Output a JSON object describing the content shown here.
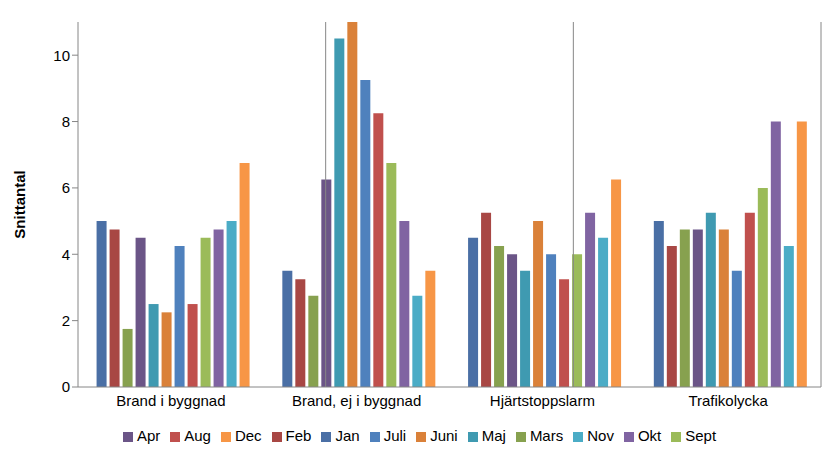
{
  "chart_data": {
    "type": "bar",
    "y_label": "Snittantal",
    "categories": [
      "Brand i byggnad",
      "Brand, ej i byggnad",
      "Hjärtstoppslarm",
      "Trafikolycka"
    ],
    "series": [
      {
        "name": "Jan",
        "color": "#4a6fa5",
        "values": [
          5,
          3.5,
          4.5,
          5
        ]
      },
      {
        "name": "Feb",
        "color": "#a84744",
        "values": [
          4.75,
          3.25,
          5.25,
          4.25
        ]
      },
      {
        "name": "Mars",
        "color": "#87a14f",
        "values": [
          1.75,
          2.75,
          4.25,
          4.75
        ]
      },
      {
        "name": "Apr",
        "color": "#6b5587",
        "values": [
          4.5,
          6.25,
          4,
          4.75
        ]
      },
      {
        "name": "Maj",
        "color": "#3f9ab1",
        "values": [
          2.5,
          10.5,
          3.5,
          5.25
        ]
      },
      {
        "name": "Juni",
        "color": "#da8139",
        "values": [
          2.25,
          11,
          5,
          4.75
        ]
      },
      {
        "name": "Juli",
        "color": "#4f81bd",
        "values": [
          4.25,
          9.25,
          4,
          3.5
        ]
      },
      {
        "name": "Aug",
        "color": "#c0504d",
        "values": [
          2.5,
          8.25,
          3.25,
          5.25
        ]
      },
      {
        "name": "Sept",
        "color": "#9bbb59",
        "values": [
          4.5,
          6.75,
          4,
          6
        ]
      },
      {
        "name": "Okt",
        "color": "#8064a2",
        "values": [
          4.75,
          5,
          5.25,
          8
        ]
      },
      {
        "name": "Nov",
        "color": "#4bacc6",
        "values": [
          5,
          2.75,
          4.5,
          4.25
        ]
      },
      {
        "name": "Dec",
        "color": "#f79646",
        "values": [
          6.75,
          3.5,
          6.25,
          8
        ]
      }
    ],
    "ylim": [
      0,
      11
    ],
    "yticks": [
      0,
      2,
      4,
      6,
      8,
      10
    ],
    "grid": false,
    "legend": "bottom"
  }
}
